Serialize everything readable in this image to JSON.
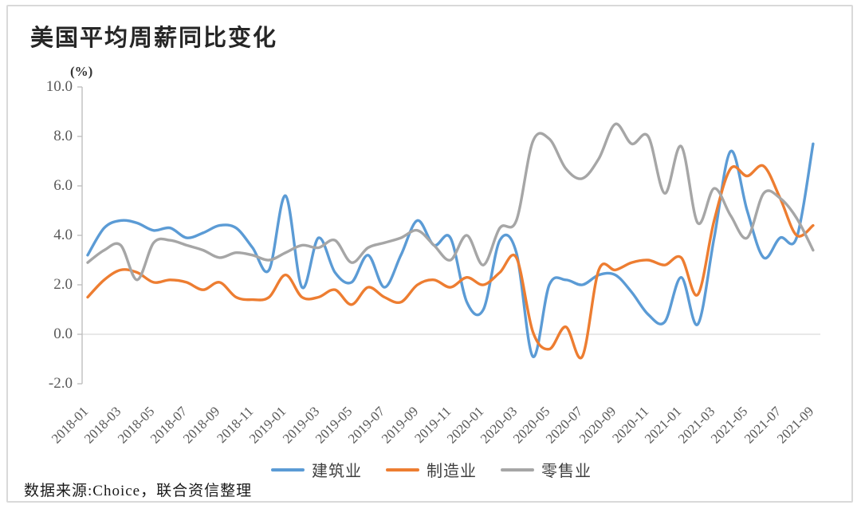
{
  "chart_data": {
    "type": "line",
    "title": "美国平均周薪同比变化",
    "unit_label": "(%)",
    "xlabel": "",
    "ylabel": "(%)",
    "ylim": [
      -2.0,
      10.0
    ],
    "ytick_labels": [
      "10.0",
      "8.0",
      "6.0",
      "4.0",
      "2.0",
      "0.0",
      "-2.0"
    ],
    "yticks": [
      10,
      8,
      6,
      4,
      2,
      0,
      -2
    ],
    "grid": "zero-line-only",
    "legend_position": "bottom-center",
    "x_tick_step": 2,
    "x": [
      "2018-01",
      "2018-02",
      "2018-03",
      "2018-04",
      "2018-05",
      "2018-06",
      "2018-07",
      "2018-08",
      "2018-09",
      "2018-10",
      "2018-11",
      "2018-12",
      "2019-01",
      "2019-02",
      "2019-03",
      "2019-04",
      "2019-05",
      "2019-06",
      "2019-07",
      "2019-08",
      "2019-09",
      "2019-10",
      "2019-11",
      "2019-12",
      "2020-01",
      "2020-02",
      "2020-03",
      "2020-04",
      "2020-05",
      "2020-06",
      "2020-07",
      "2020-08",
      "2020-09",
      "2020-10",
      "2020-11",
      "2020-12",
      "2021-01",
      "2021-02",
      "2021-03",
      "2021-04",
      "2021-05",
      "2021-06",
      "2021-07",
      "2021-08",
      "2021-09"
    ],
    "series": [
      {
        "name": "建筑业",
        "color": "#5B9BD5",
        "values": [
          3.2,
          4.3,
          4.6,
          4.5,
          4.2,
          4.3,
          3.9,
          4.1,
          4.4,
          4.3,
          3.5,
          2.6,
          5.6,
          1.9,
          3.9,
          2.5,
          2.1,
          3.2,
          1.9,
          3.2,
          4.6,
          3.6,
          3.9,
          1.3,
          1.0,
          3.8,
          3.3,
          -0.9,
          2.0,
          2.2,
          2.0,
          2.4,
          2.4,
          1.7,
          0.8,
          0.5,
          2.3,
          0.4,
          3.9,
          7.4,
          5.0,
          3.1,
          3.9,
          3.9,
          7.7
        ]
      },
      {
        "name": "制造业",
        "color": "#ED7D31",
        "values": [
          1.5,
          2.2,
          2.6,
          2.5,
          2.1,
          2.2,
          2.1,
          1.8,
          2.1,
          1.5,
          1.4,
          1.5,
          2.4,
          1.5,
          1.5,
          1.8,
          1.2,
          1.9,
          1.5,
          1.3,
          2.0,
          2.2,
          1.9,
          2.3,
          2.0,
          2.5,
          3.1,
          0.1,
          -0.6,
          0.3,
          -0.9,
          2.6,
          2.6,
          2.9,
          3.0,
          2.8,
          3.1,
          1.6,
          4.6,
          6.7,
          6.4,
          6.8,
          5.5,
          4.0,
          4.4
        ]
      },
      {
        "name": "零售业",
        "color": "#A6A6A6",
        "values": [
          2.9,
          3.4,
          3.6,
          2.2,
          3.7,
          3.8,
          3.6,
          3.4,
          3.1,
          3.3,
          3.2,
          3.0,
          3.3,
          3.6,
          3.5,
          3.8,
          2.9,
          3.5,
          3.7,
          3.9,
          4.2,
          3.6,
          3.0,
          4.0,
          2.8,
          4.3,
          4.6,
          7.8,
          7.9,
          6.7,
          6.3,
          7.1,
          8.5,
          7.7,
          8.0,
          5.7,
          7.6,
          4.5,
          5.9,
          4.8,
          3.9,
          5.7,
          5.5,
          4.7,
          3.4
        ]
      }
    ],
    "axis_color": "#BFBFBF",
    "gridline_color": "#D9D9D9"
  },
  "source_note": "数据来源:Choice，联合资信整理"
}
